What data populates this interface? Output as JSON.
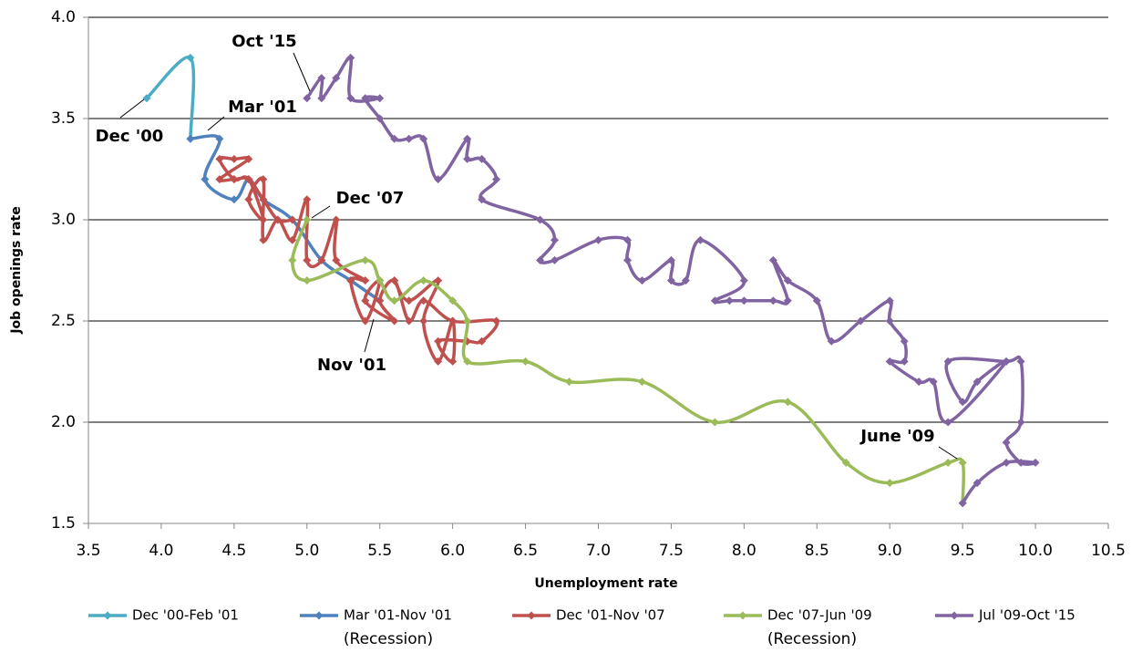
{
  "chart_data": {
    "type": "line",
    "x_label": "Unemployment rate",
    "y_label": "Job openings rate",
    "xlim": [
      3.5,
      10.5
    ],
    "xticks": [
      3.5,
      {
        "value": 4,
        "label": "4.0"
      },
      4.5,
      {
        "value": 5,
        "label": "5.0"
      },
      5.5,
      {
        "value": 6,
        "label": "6.0"
      },
      6.5,
      {
        "value": 7,
        "label": "7.0"
      },
      7.5,
      {
        "value": 8,
        "label": "8.0"
      },
      8.5,
      {
        "value": 9,
        "label": "9.0"
      },
      9.5,
      {
        "value": 10,
        "label": "10.0"
      },
      10.5
    ],
    "ylim": [
      1.5,
      4
    ],
    "yticks": [
      1.5,
      {
        "value": 2,
        "label": "2.0"
      },
      2.5,
      {
        "value": 3,
        "label": "3.0"
      },
      3.5,
      {
        "value": 4,
        "label": "4.0"
      }
    ],
    "grid": true,
    "legend": "bottom",
    "series": [
      {
        "name": "Dec '00-Feb '01",
        "color": "#4bacc6",
        "x": [
          3.9,
          4.2,
          4.2
        ],
        "values": [
          3.6,
          3.8,
          3.4
        ]
      },
      {
        "name": "Mar '01-Nov '01",
        "color": "#4f81bd",
        "note": "(Recession)",
        "x": [
          4.2,
          4.4,
          4.3,
          4.5,
          4.6,
          4.7,
          4.9,
          5.1,
          5.3,
          5.5
        ],
        "values": [
          3.4,
          3.4,
          3.2,
          3.1,
          3.2,
          3.1,
          3.0,
          2.8,
          2.7,
          2.6
        ]
      },
      {
        "name": "Dec '01-Nov '07",
        "color": "#c0504d",
        "x": [
          5.6,
          5.7,
          5.9,
          5.8,
          5.9,
          6.0,
          6.0,
          5.9,
          6.1,
          6.2,
          6.3,
          6.0,
          5.8,
          5.7,
          5.6,
          5.5,
          5.6,
          5.4,
          5.5,
          5.4,
          5.3,
          5.4,
          5.2,
          5.2,
          5.1,
          5.0,
          5.0,
          4.9,
          4.8,
          4.7,
          4.7,
          4.6,
          4.7,
          4.6,
          4.5,
          4.4,
          4.5,
          4.6,
          4.4,
          4.5,
          4.6,
          4.7,
          4.8,
          4.9
        ],
        "values": [
          2.7,
          2.6,
          2.7,
          2.5,
          2.3,
          2.5,
          2.3,
          2.4,
          2.4,
          2.4,
          2.5,
          2.5,
          2.6,
          2.5,
          2.7,
          2.6,
          2.5,
          2.6,
          2.7,
          2.5,
          2.7,
          2.7,
          2.8,
          3.0,
          2.8,
          2.8,
          3.1,
          2.9,
          3.0,
          2.9,
          3.2,
          3.1,
          3.0,
          3.2,
          3.2,
          3.3,
          3.3,
          3.3,
          3.2,
          3.2,
          3.2,
          3.1,
          3.0,
          3.0
        ]
      },
      {
        "name": "Dec '07-Jun '09",
        "color": "#9bbb59",
        "note": "(Recession)",
        "x": [
          5.0,
          4.9,
          5.0,
          5.4,
          5.5,
          5.6,
          5.8,
          6.0,
          6.1,
          6.1,
          6.5,
          6.8,
          7.3,
          7.8,
          8.3,
          8.7,
          9.0,
          9.4,
          9.5,
          9.5
        ],
        "values": [
          3.0,
          2.8,
          2.7,
          2.8,
          2.7,
          2.6,
          2.7,
          2.6,
          2.5,
          2.3,
          2.3,
          2.2,
          2.2,
          2.0,
          2.1,
          1.8,
          1.7,
          1.8,
          1.8,
          1.6
        ]
      },
      {
        "name": "Jul '09-Oct '15",
        "color": "#8064a2",
        "x": [
          9.5,
          9.6,
          9.8,
          10.0,
          9.9,
          9.8,
          9.9,
          9.9,
          9.8,
          9.4,
          9.5,
          9.6,
          9.8,
          9.4,
          9.3,
          9.2,
          9.0,
          9.1,
          9.1,
          9.0,
          9.0,
          8.8,
          8.6,
          8.5,
          8.3,
          8.2,
          8.3,
          8.2,
          8.0,
          7.9,
          7.8,
          8.0,
          7.7,
          7.6,
          7.5,
          7.5,
          7.3,
          7.2,
          7.2,
          7.0,
          6.7,
          6.6,
          6.7,
          6.6,
          6.2,
          6.3,
          6.2,
          6.1,
          6.1,
          5.9,
          5.8,
          5.7,
          5.6,
          5.5,
          5.4,
          5.5,
          5.3,
          5.3,
          5.2,
          5.1,
          5.1,
          5.0
        ],
        "values": [
          1.6,
          1.7,
          1.8,
          1.8,
          1.8,
          1.9,
          2.0,
          2.3,
          2.3,
          2.3,
          2.1,
          2.2,
          2.3,
          2.0,
          2.2,
          2.2,
          2.3,
          2.3,
          2.4,
          2.5,
          2.6,
          2.5,
          2.4,
          2.6,
          2.7,
          2.8,
          2.6,
          2.6,
          2.6,
          2.6,
          2.6,
          2.7,
          2.9,
          2.7,
          2.7,
          2.8,
          2.7,
          2.8,
          2.9,
          2.9,
          2.8,
          2.8,
          2.9,
          3.0,
          3.1,
          3.2,
          3.3,
          3.3,
          3.4,
          3.2,
          3.4,
          3.4,
          3.4,
          3.5,
          3.6,
          3.6,
          3.6,
          3.8,
          3.7,
          3.6,
          3.7,
          3.6
        ]
      }
    ],
    "annotations": [
      "Oct '15",
      "Dec '00",
      "Mar '01",
      "Dec '07",
      "Nov '01",
      "June '09"
    ]
  }
}
